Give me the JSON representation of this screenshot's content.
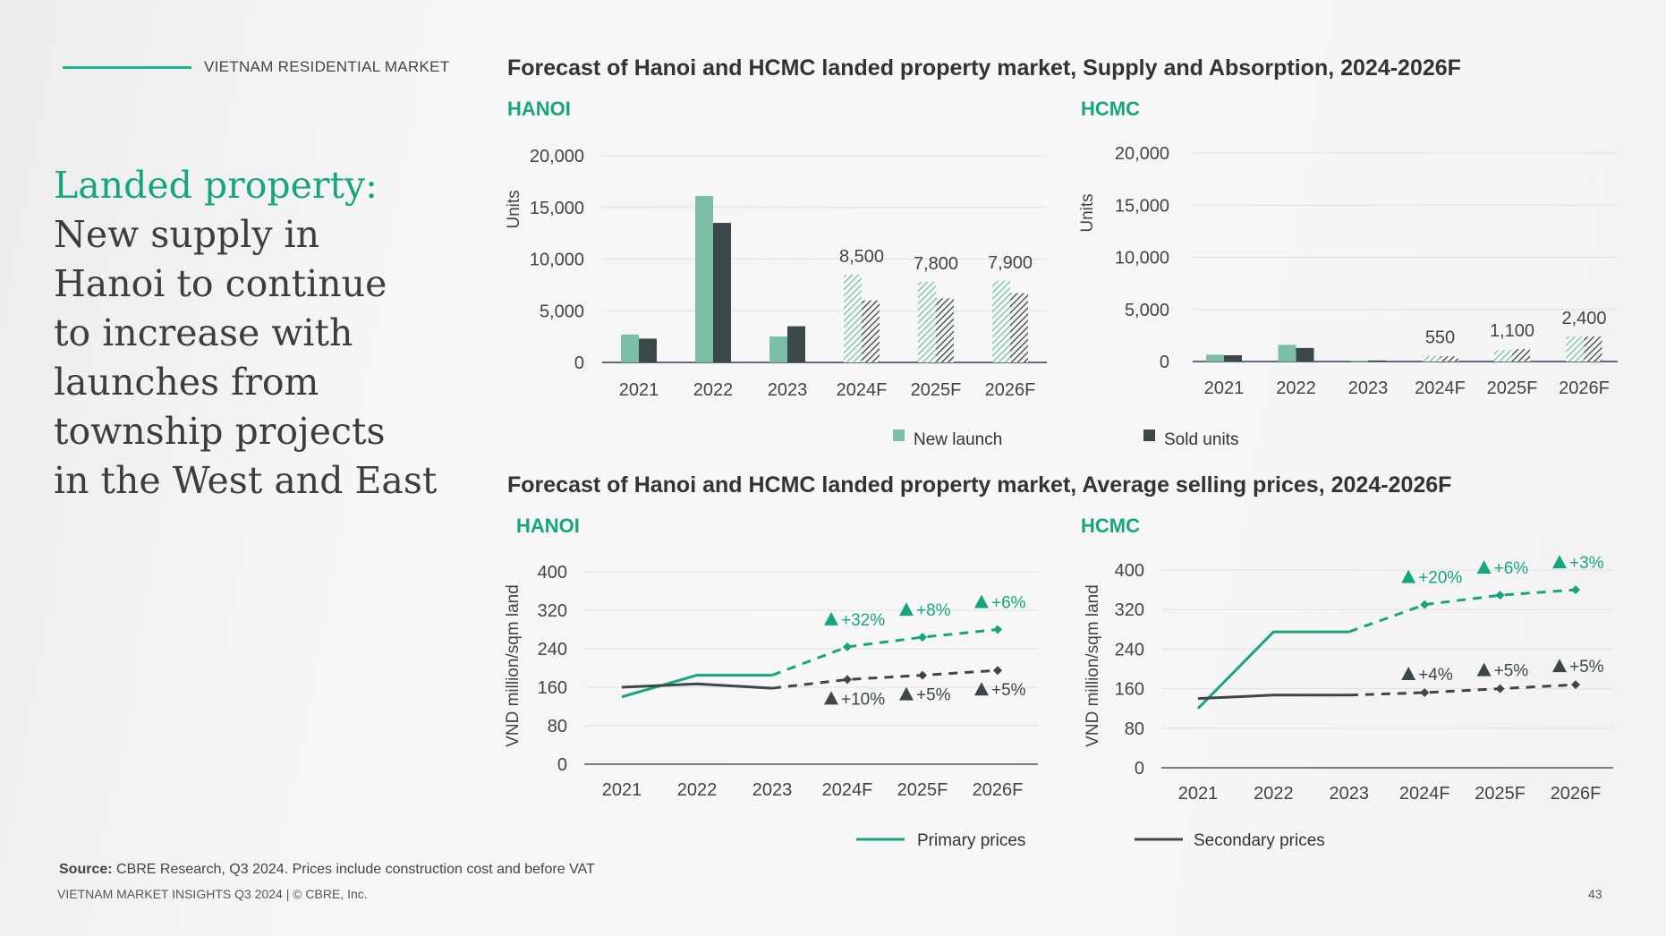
{
  "header": {
    "section_label": "VIETNAM RESIDENTIAL MARKET"
  },
  "headline": {
    "accent": "Landed property:",
    "lines": [
      "New supply in",
      "Hanoi to continue",
      "to increase with",
      "launches from",
      "township projects",
      "in the West and East"
    ]
  },
  "colors": {
    "accent": "#17a57f",
    "new_launch": "#7cbfa6",
    "sold_units": "#3b4748",
    "primary_line": "#17a57f",
    "secondary_line": "#3b4748"
  },
  "supply_section": {
    "title": "Forecast of Hanoi and HCMC landed property market, Supply and Absorption, 2024-2026F",
    "legend": {
      "new_launch": "New launch",
      "sold_units": "Sold units"
    }
  },
  "price_section": {
    "title": "Forecast of Hanoi and HCMC landed property market, Average selling prices, 2024-2026F",
    "legend": {
      "primary": "Primary prices",
      "secondary": "Secondary prices"
    }
  },
  "source": {
    "label": "Source:",
    "text": " CBRE Research, Q3 2024. Prices include construction cost and before VAT"
  },
  "footer": {
    "text": "VIETNAM MARKET INSIGHTS Q3 2024 | © CBRE, Inc.",
    "page": "43"
  },
  "chart_data": [
    {
      "id": "supply-hanoi",
      "type": "bar",
      "title": "HANOI",
      "ylabel": "Units",
      "ylim": [
        0,
        20000
      ],
      "yticks": [
        0,
        5000,
        10000,
        15000,
        20000
      ],
      "categories": [
        "2021",
        "2022",
        "2023",
        "2024F",
        "2025F",
        "2026F"
      ],
      "forecast_from_index": 3,
      "series": [
        {
          "name": "New launch",
          "values": [
            2700,
            16100,
            2500,
            8500,
            7800,
            7900
          ]
        },
        {
          "name": "Sold units",
          "values": [
            2300,
            13500,
            3500,
            6000,
            6200,
            6700
          ]
        }
      ],
      "data_labels": [
        "",
        "",
        "",
        "8,500",
        "7,800",
        "7,900"
      ]
    },
    {
      "id": "supply-hcmc",
      "type": "bar",
      "title": "HCMC",
      "ylabel": "Units",
      "ylim": [
        0,
        20000
      ],
      "yticks": [
        0,
        5000,
        10000,
        15000,
        20000
      ],
      "categories": [
        "2021",
        "2022",
        "2023",
        "2024F",
        "2025F",
        "2026F"
      ],
      "forecast_from_index": 3,
      "series": [
        {
          "name": "New launch",
          "values": [
            650,
            1600,
            50,
            550,
            1100,
            2400
          ]
        },
        {
          "name": "Sold units",
          "values": [
            600,
            1300,
            100,
            500,
            1200,
            2400
          ]
        }
      ],
      "data_labels": [
        "",
        "",
        "",
        "550",
        "1,100",
        "2,400"
      ]
    },
    {
      "id": "price-hanoi",
      "type": "line",
      "title": "HANOI",
      "ylabel": "VND million/sqm land",
      "ylim": [
        0,
        400
      ],
      "yticks": [
        0,
        80,
        160,
        240,
        320,
        400
      ],
      "categories": [
        "2021",
        "2022",
        "2023",
        "2024F",
        "2025F",
        "2026F"
      ],
      "forecast_from_index": 3,
      "series": [
        {
          "name": "Primary prices",
          "values": [
            140,
            185,
            185,
            244,
            264,
            280
          ],
          "growth_labels": [
            "",
            "",
            "",
            "+32%",
            "+8%",
            "+6%"
          ]
        },
        {
          "name": "Secondary prices",
          "values": [
            160,
            167,
            158,
            176,
            185,
            195
          ],
          "growth_labels": [
            "",
            "",
            "",
            "+10%",
            "+5%",
            "+5%"
          ]
        }
      ]
    },
    {
      "id": "price-hcmc",
      "type": "line",
      "title": "HCMC",
      "ylabel": "VND million/sqm land",
      "ylim": [
        0,
        400
      ],
      "yticks": [
        0,
        80,
        160,
        240,
        320,
        400
      ],
      "categories": [
        "2021",
        "2022",
        "2023",
        "2024F",
        "2025F",
        "2026F"
      ],
      "forecast_from_index": 3,
      "series": [
        {
          "name": "Primary prices",
          "values": [
            120,
            275,
            275,
            330,
            349,
            360
          ],
          "growth_labels": [
            "",
            "",
            "",
            "+20%",
            "+6%",
            "+3%"
          ]
        },
        {
          "name": "Secondary prices",
          "values": [
            140,
            147,
            147,
            152,
            160,
            168
          ],
          "growth_labels": [
            "",
            "",
            "",
            "+4%",
            "+5%",
            "+5%"
          ]
        }
      ]
    }
  ]
}
